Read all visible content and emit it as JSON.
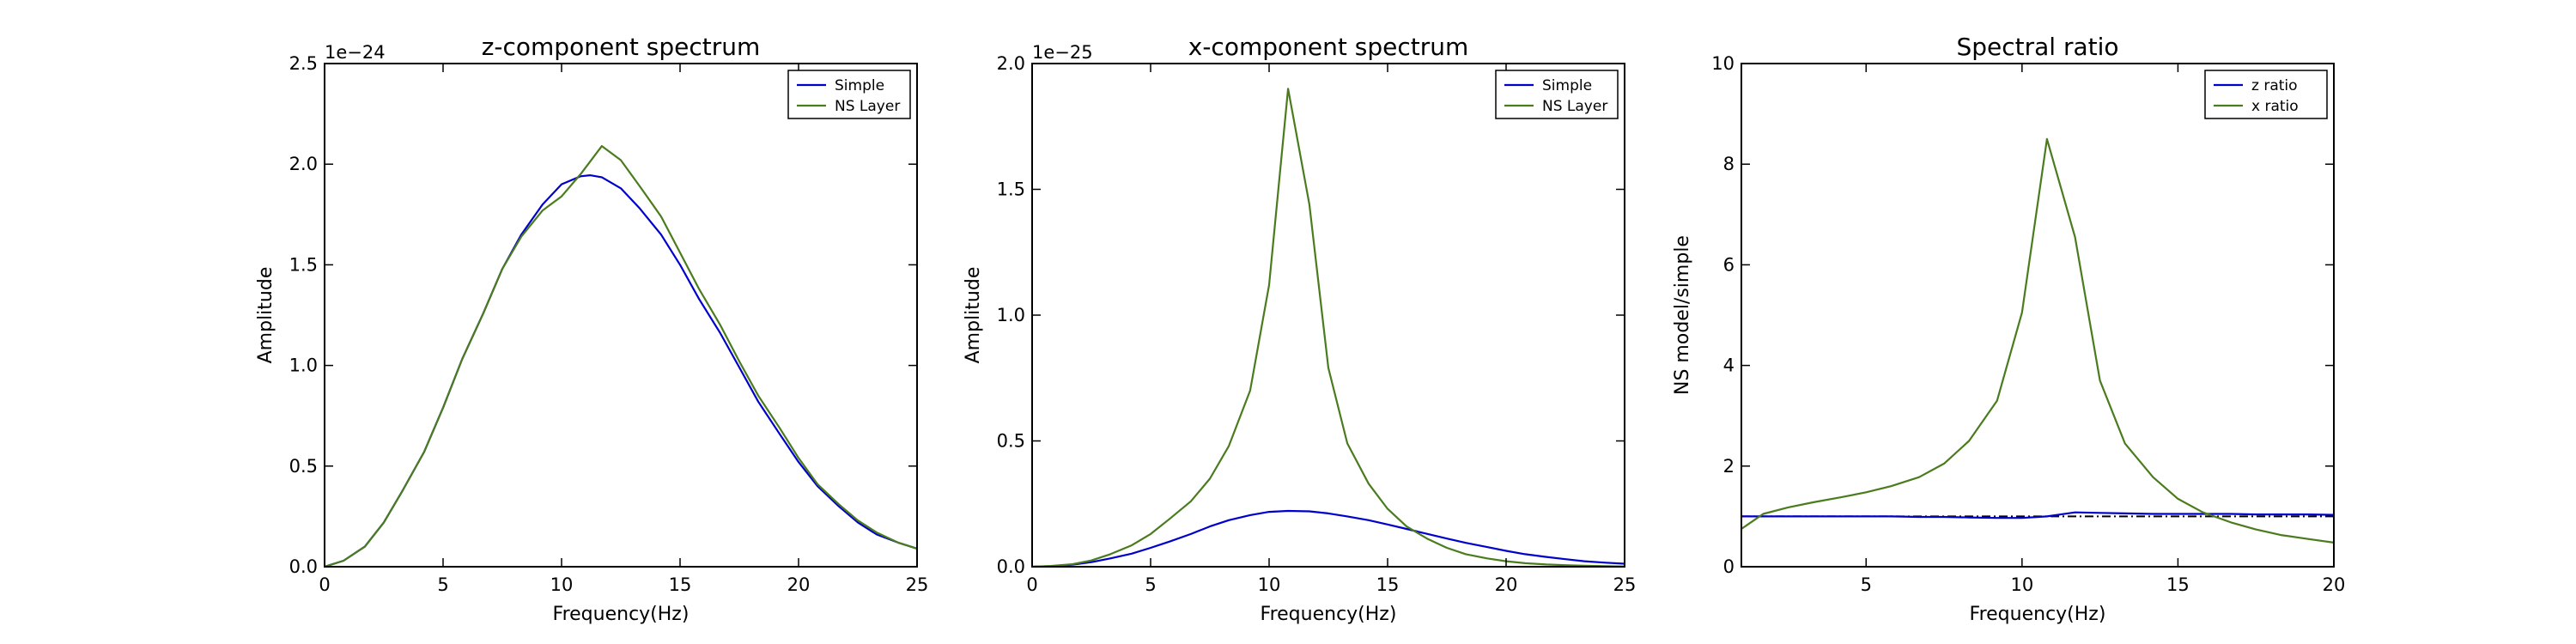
{
  "colors": {
    "simple": "#0000cc",
    "ns": "#4a7c1e",
    "dashdot": "#000000"
  },
  "chart_data": [
    {
      "type": "line",
      "title": "z-component spectrum",
      "xlabel": "Frequency(Hz)",
      "ylabel": "Amplitude",
      "offset_text": "1e−24",
      "xlim": [
        0,
        25
      ],
      "ylim": [
        0,
        2.5
      ],
      "xticks": [
        0,
        5,
        10,
        15,
        20,
        25
      ],
      "xtick_labels": [
        "0",
        "5",
        "10",
        "15",
        "20",
        "25"
      ],
      "yticks": [
        0,
        0.5,
        1.0,
        1.5,
        2.0,
        2.5
      ],
      "ytick_labels": [
        "0.0",
        "0.5",
        "1.0",
        "1.5",
        "2.0",
        "2.5"
      ],
      "legend": "top-right",
      "series": [
        {
          "name": "Simple",
          "color": "simple",
          "x": [
            0,
            0.8,
            1.7,
            2.5,
            3.3,
            4.2,
            5.0,
            5.8,
            6.7,
            7.5,
            8.3,
            9.2,
            10.0,
            10.8,
            11.2,
            11.7,
            12.5,
            13.3,
            14.2,
            15.0,
            15.8,
            16.7,
            17.5,
            18.3,
            19.2,
            20.0,
            20.8,
            21.7,
            22.5,
            23.3,
            24.2,
            25.0
          ],
          "y": [
            0.0,
            0.03,
            0.1,
            0.22,
            0.38,
            0.57,
            0.79,
            1.03,
            1.26,
            1.48,
            1.65,
            1.8,
            1.9,
            1.94,
            1.945,
            1.935,
            1.88,
            1.78,
            1.65,
            1.5,
            1.33,
            1.16,
            0.99,
            0.82,
            0.66,
            0.52,
            0.4,
            0.3,
            0.22,
            0.16,
            0.12,
            0.09
          ]
        },
        {
          "name": "NS Layer",
          "color": "ns",
          "x": [
            0,
            0.8,
            1.7,
            2.5,
            3.3,
            4.2,
            5.0,
            5.8,
            6.7,
            7.5,
            8.3,
            9.2,
            10.0,
            10.8,
            11.7,
            12.5,
            13.3,
            14.2,
            15.0,
            15.8,
            16.7,
            17.5,
            18.3,
            19.2,
            20.0,
            20.8,
            21.7,
            22.5,
            23.3,
            24.2,
            25.0
          ],
          "y": [
            0.0,
            0.03,
            0.1,
            0.22,
            0.38,
            0.57,
            0.79,
            1.03,
            1.26,
            1.48,
            1.64,
            1.77,
            1.84,
            1.95,
            2.09,
            2.02,
            1.89,
            1.74,
            1.56,
            1.38,
            1.2,
            1.02,
            0.85,
            0.69,
            0.54,
            0.41,
            0.31,
            0.23,
            0.17,
            0.12,
            0.09
          ]
        }
      ]
    },
    {
      "type": "line",
      "title": "x-component spectrum",
      "xlabel": "Frequency(Hz)",
      "ylabel": "Amplitude",
      "offset_text": "1e−25",
      "xlim": [
        0,
        25
      ],
      "ylim": [
        0,
        2.0
      ],
      "xticks": [
        0,
        5,
        10,
        15,
        20,
        25
      ],
      "xtick_labels": [
        "0",
        "5",
        "10",
        "15",
        "20",
        "25"
      ],
      "yticks": [
        0,
        0.5,
        1.0,
        1.5,
        2.0
      ],
      "ytick_labels": [
        "0.0",
        "0.5",
        "1.0",
        "1.5",
        "2.0"
      ],
      "legend": "top-right",
      "series": [
        {
          "name": "Simple",
          "color": "simple",
          "x": [
            0,
            0.8,
            1.7,
            2.5,
            3.3,
            4.2,
            5.0,
            5.8,
            6.7,
            7.5,
            8.3,
            9.2,
            10.0,
            10.8,
            11.7,
            12.5,
            13.3,
            14.2,
            15.0,
            15.8,
            16.7,
            17.5,
            18.3,
            19.2,
            20.0,
            20.8,
            21.7,
            22.5,
            23.3,
            24.2,
            25.0
          ],
          "y": [
            0.0,
            0.002,
            0.008,
            0.018,
            0.033,
            0.052,
            0.075,
            0.1,
            0.13,
            0.16,
            0.185,
            0.205,
            0.218,
            0.222,
            0.22,
            0.212,
            0.2,
            0.185,
            0.168,
            0.15,
            0.13,
            0.112,
            0.095,
            0.078,
            0.063,
            0.05,
            0.039,
            0.03,
            0.022,
            0.016,
            0.012
          ]
        },
        {
          "name": "NS Layer",
          "color": "ns",
          "x": [
            0,
            0.8,
            1.7,
            2.5,
            3.3,
            4.2,
            5.0,
            5.8,
            6.7,
            7.5,
            8.3,
            9.2,
            10.0,
            10.8,
            11.7,
            12.5,
            13.3,
            14.2,
            15.0,
            15.8,
            16.7,
            17.5,
            18.3,
            19.2,
            20.0,
            20.8,
            21.7,
            22.5,
            23.3,
            24.2,
            25.0
          ],
          "y": [
            0.0,
            0.003,
            0.01,
            0.025,
            0.05,
            0.085,
            0.13,
            0.19,
            0.26,
            0.35,
            0.48,
            0.7,
            1.12,
            1.9,
            1.44,
            0.79,
            0.49,
            0.33,
            0.23,
            0.16,
            0.11,
            0.075,
            0.05,
            0.033,
            0.022,
            0.014,
            0.009,
            0.006,
            0.004,
            0.002,
            0.001
          ]
        }
      ]
    },
    {
      "type": "line",
      "title": "Spectral ratio",
      "xlabel": "Frequency(Hz)",
      "ylabel": "NS model/simple",
      "offset_text": "",
      "xlim": [
        1,
        20
      ],
      "ylim": [
        0,
        10
      ],
      "xticks": [
        5,
        10,
        15,
        20
      ],
      "xtick_labels": [
        "5",
        "10",
        "15",
        "20"
      ],
      "yticks": [
        0,
        2,
        4,
        6,
        8,
        10
      ],
      "ytick_labels": [
        "0",
        "2",
        "4",
        "6",
        "8",
        "10"
      ],
      "legend": "top-right",
      "reference_line": {
        "y": 1.0,
        "style": "dash-dot"
      },
      "series": [
        {
          "name": "z ratio",
          "color": "simple",
          "x": [
            1,
            1.7,
            2.5,
            3.3,
            4.2,
            5.0,
            5.8,
            6.7,
            7.5,
            8.3,
            9.2,
            10.0,
            10.8,
            11.7,
            12.5,
            13.3,
            14.2,
            15.0,
            15.8,
            16.7,
            17.5,
            18.3,
            19.2,
            20.0
          ],
          "y": [
            1.0,
            1.0,
            1.0,
            1.0,
            1.0,
            1.0,
            1.0,
            0.99,
            0.99,
            0.98,
            0.97,
            0.97,
            1.0,
            1.08,
            1.07,
            1.06,
            1.05,
            1.05,
            1.05,
            1.05,
            1.04,
            1.04,
            1.04,
            1.03
          ]
        },
        {
          "name": "x ratio",
          "color": "ns",
          "x": [
            1,
            1.7,
            2.5,
            3.3,
            4.2,
            5.0,
            5.8,
            6.7,
            7.5,
            8.3,
            9.2,
            10.0,
            10.8,
            11.7,
            12.5,
            13.3,
            14.2,
            15.0,
            15.8,
            16.7,
            17.5,
            18.3,
            19.2,
            20.0
          ],
          "y": [
            0.75,
            1.05,
            1.18,
            1.28,
            1.38,
            1.48,
            1.6,
            1.78,
            2.05,
            2.5,
            3.3,
            5.05,
            8.5,
            6.55,
            3.7,
            2.45,
            1.78,
            1.35,
            1.08,
            0.88,
            0.74,
            0.63,
            0.55,
            0.48
          ]
        }
      ]
    }
  ]
}
